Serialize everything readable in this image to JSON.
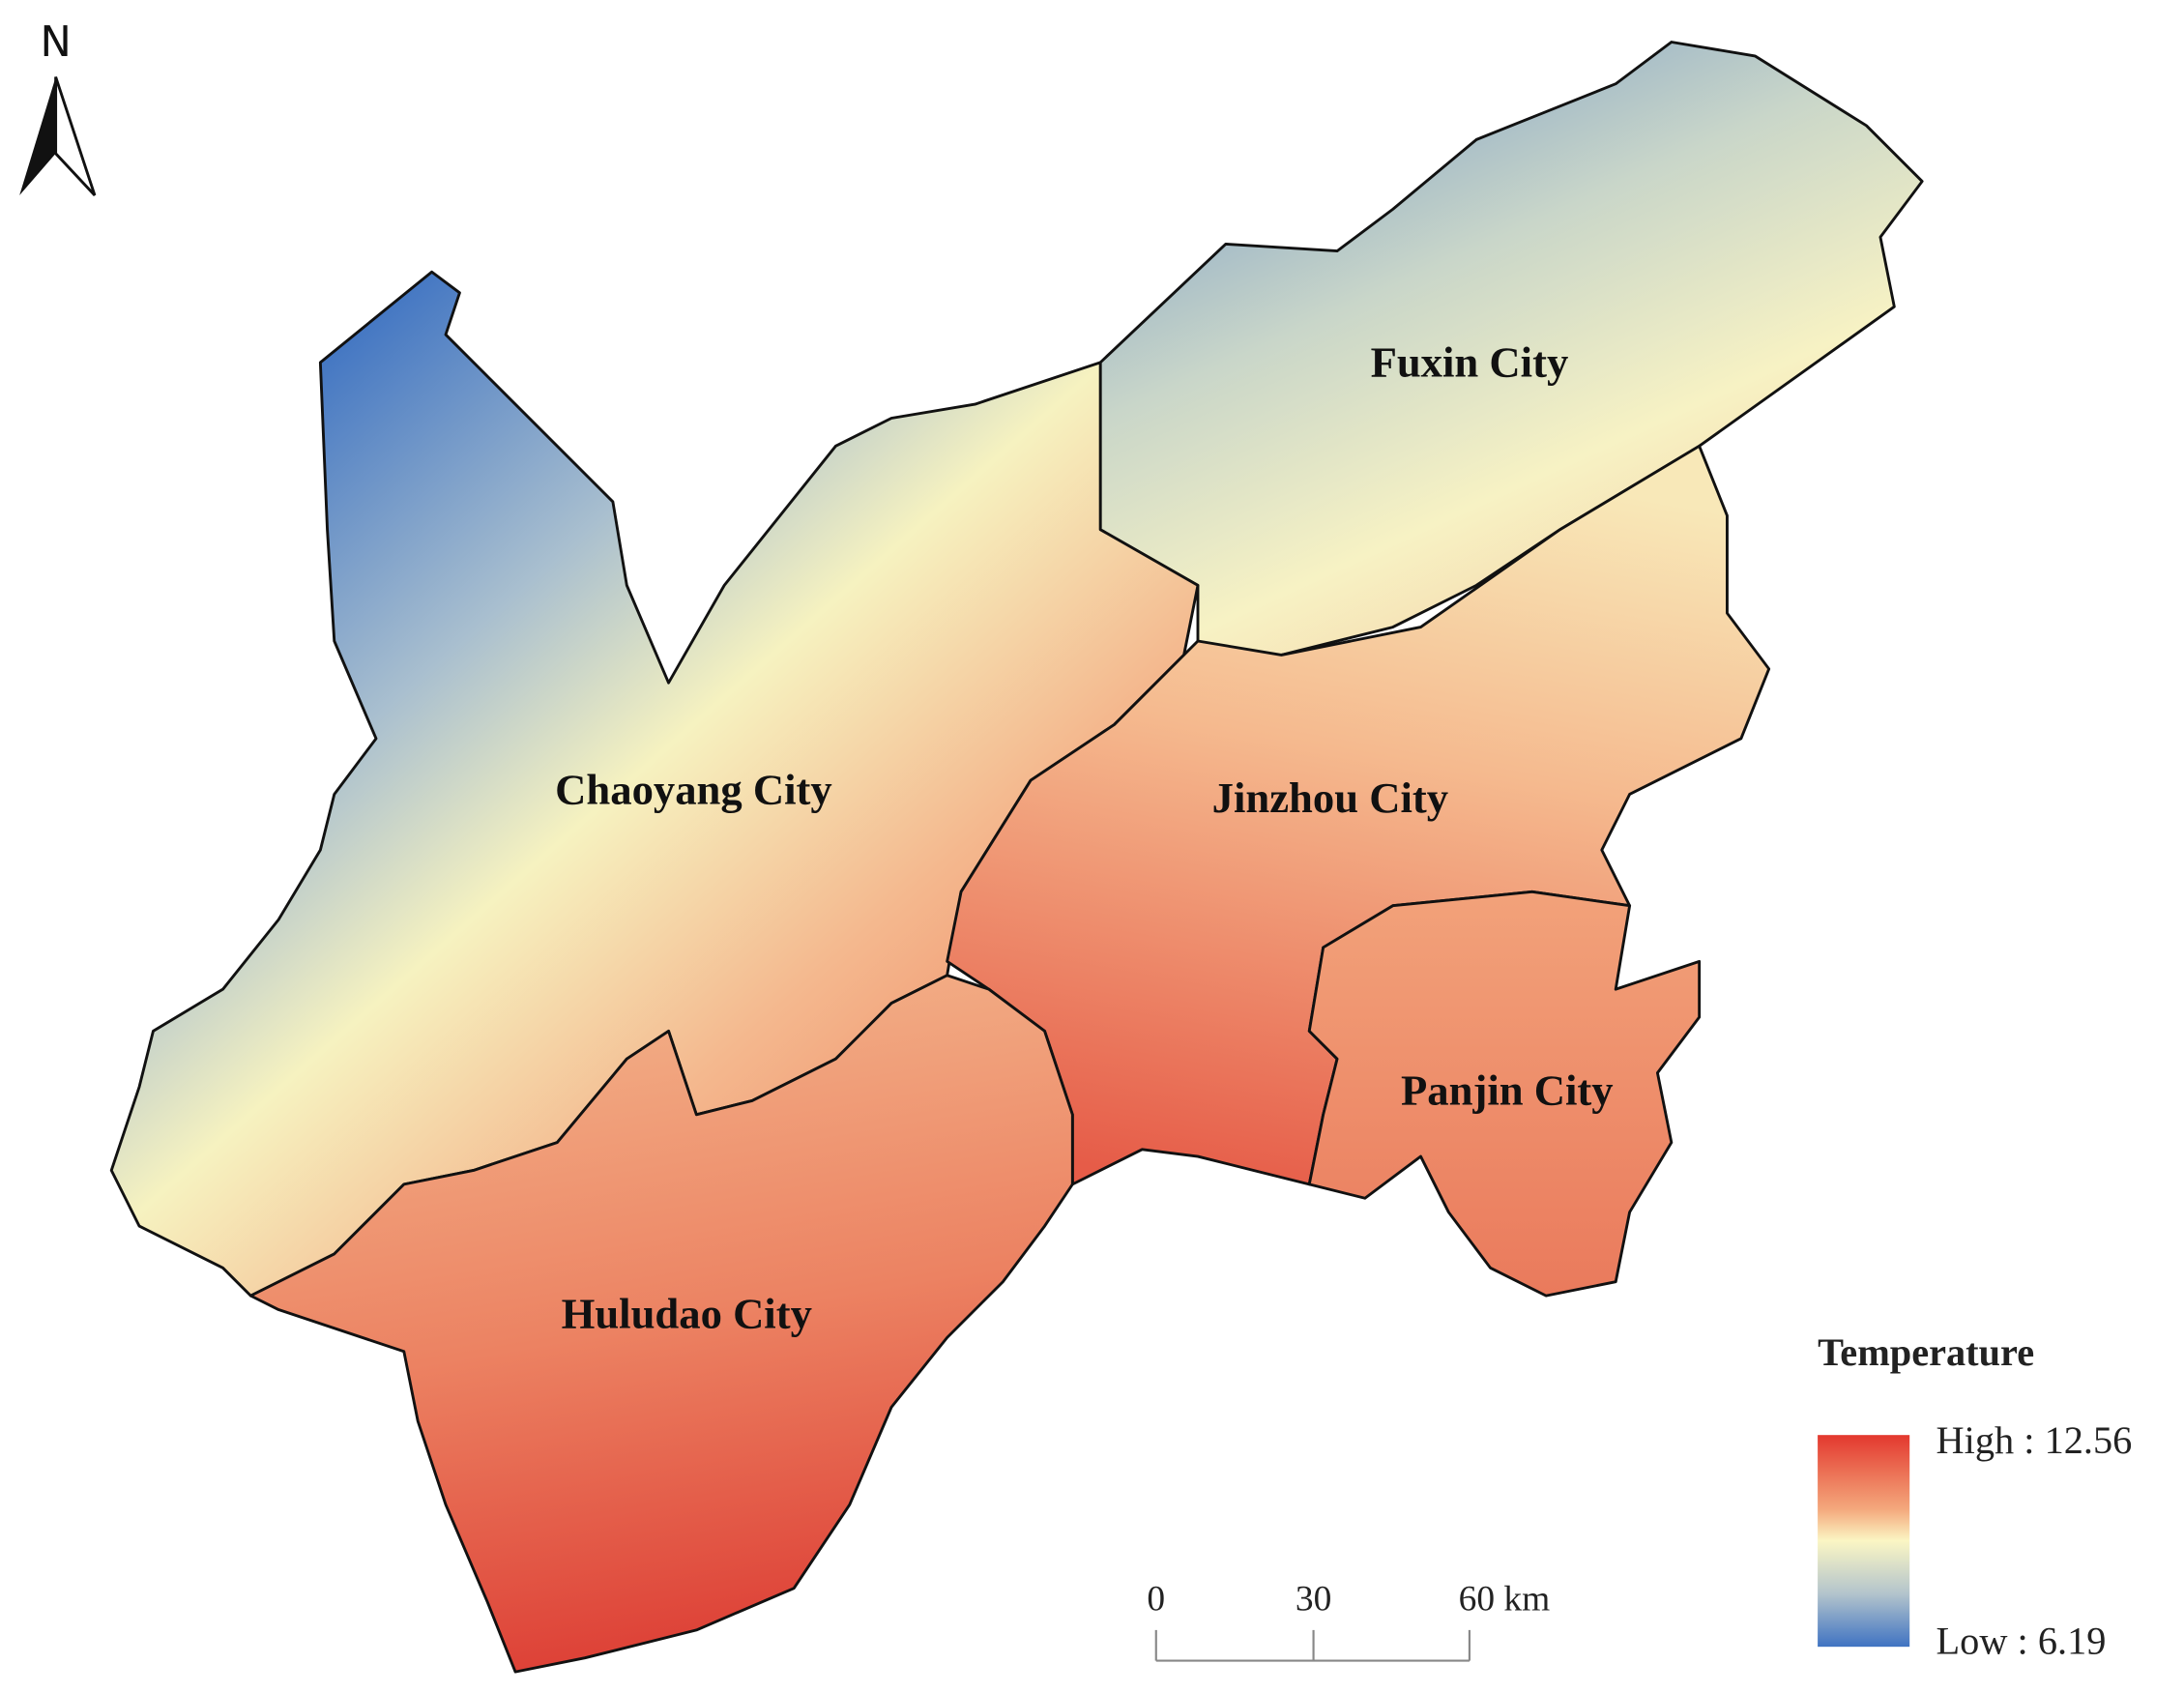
{
  "north_arrow": {
    "label": "N"
  },
  "regions": [
    {
      "label": "Fuxin City"
    },
    {
      "label": "Chaoyang City"
    },
    {
      "label": "Jinzhou City"
    },
    {
      "label": "Panjin City"
    },
    {
      "label": "Huludao City"
    }
  ],
  "legend": {
    "title": "Temperature",
    "high": "High : 12.56",
    "low": "Low : 6.19"
  },
  "scale_bar": {
    "ticks": [
      "0",
      "30",
      "60 km"
    ]
  }
}
